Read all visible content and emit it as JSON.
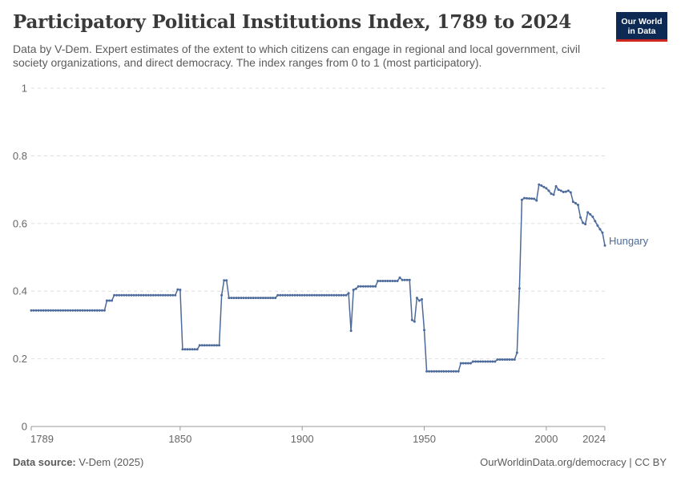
{
  "header": {
    "title": "Participatory Political Institutions Index, 1789 to 2024",
    "subtitle": "Data by V-Dem. Expert estimates of the extent to which citizens can engage in regional and local government, civil society organizations, and direct democracy. The index ranges from 0 to 1 (most participatory).",
    "logo_line1": "Our World",
    "logo_line2": "in Data"
  },
  "footer": {
    "source_label": "Data source:",
    "source_value": "V-Dem (2025)",
    "right": "OurWorldinData.org/democracy | CC BY"
  },
  "colors": {
    "line": "#4c6a9c",
    "grid": "#dddddd",
    "logo_bg": "#0d2a54",
    "logo_accent": "#ce261e"
  },
  "chart_data": {
    "type": "line",
    "title": "Participatory Political Institutions Index, 1789 to 2024",
    "xlim": [
      1789,
      2024
    ],
    "ylim": [
      0,
      1
    ],
    "x_ticks": [
      1789,
      1850,
      1900,
      1950,
      2000,
      2024
    ],
    "y_ticks": [
      0,
      0.2,
      0.4,
      0.6,
      0.8,
      1
    ],
    "y_tick_labels": [
      "0",
      "0.2",
      "0.4",
      "0.6",
      "0.8",
      "1"
    ],
    "grid": "horizontal dashed",
    "series": [
      {
        "name": "Hungary",
        "color": "#4c6a9c",
        "points": [
          [
            1789,
            0.343
          ],
          [
            1819,
            0.343
          ],
          [
            1820,
            0.372
          ],
          [
            1822,
            0.372
          ],
          [
            1823,
            0.388
          ],
          [
            1848,
            0.388
          ],
          [
            1849,
            0.405
          ],
          [
            1850,
            0.404
          ],
          [
            1851,
            0.228
          ],
          [
            1857,
            0.228
          ],
          [
            1858,
            0.24
          ],
          [
            1866,
            0.24
          ],
          [
            1867,
            0.388
          ],
          [
            1868,
            0.432
          ],
          [
            1869,
            0.432
          ],
          [
            1870,
            0.38
          ],
          [
            1889,
            0.38
          ],
          [
            1890,
            0.388
          ],
          [
            1918,
            0.388
          ],
          [
            1919,
            0.394
          ],
          [
            1920,
            0.283
          ],
          [
            1921,
            0.404
          ],
          [
            1922,
            0.407
          ],
          [
            1923,
            0.414
          ],
          [
            1930,
            0.414
          ],
          [
            1931,
            0.43
          ],
          [
            1939,
            0.43
          ],
          [
            1940,
            0.44
          ],
          [
            1941,
            0.433
          ],
          [
            1944,
            0.433
          ],
          [
            1945,
            0.315
          ],
          [
            1946,
            0.31
          ],
          [
            1947,
            0.38
          ],
          [
            1948,
            0.372
          ],
          [
            1949,
            0.376
          ],
          [
            1950,
            0.285
          ],
          [
            1951,
            0.163
          ],
          [
            1964,
            0.163
          ],
          [
            1965,
            0.187
          ],
          [
            1969,
            0.187
          ],
          [
            1970,
            0.192
          ],
          [
            1979,
            0.192
          ],
          [
            1980,
            0.198
          ],
          [
            1987,
            0.198
          ],
          [
            1988,
            0.218
          ],
          [
            1989,
            0.408
          ],
          [
            1990,
            0.67
          ],
          [
            1991,
            0.675
          ],
          [
            1995,
            0.673
          ],
          [
            1996,
            0.668
          ],
          [
            1997,
            0.715
          ],
          [
            1998,
            0.712
          ],
          [
            1999,
            0.708
          ],
          [
            2000,
            0.704
          ],
          [
            2001,
            0.697
          ],
          [
            2002,
            0.688
          ],
          [
            2003,
            0.685
          ],
          [
            2004,
            0.71
          ],
          [
            2005,
            0.7
          ],
          [
            2006,
            0.697
          ],
          [
            2007,
            0.693
          ],
          [
            2008,
            0.694
          ],
          [
            2009,
            0.697
          ],
          [
            2010,
            0.692
          ],
          [
            2011,
            0.664
          ],
          [
            2012,
            0.66
          ],
          [
            2013,
            0.655
          ],
          [
            2014,
            0.618
          ],
          [
            2015,
            0.602
          ],
          [
            2016,
            0.598
          ],
          [
            2017,
            0.633
          ],
          [
            2018,
            0.627
          ],
          [
            2019,
            0.62
          ],
          [
            2020,
            0.607
          ],
          [
            2021,
            0.594
          ],
          [
            2022,
            0.583
          ],
          [
            2023,
            0.573
          ],
          [
            2024,
            0.535
          ]
        ]
      }
    ]
  }
}
